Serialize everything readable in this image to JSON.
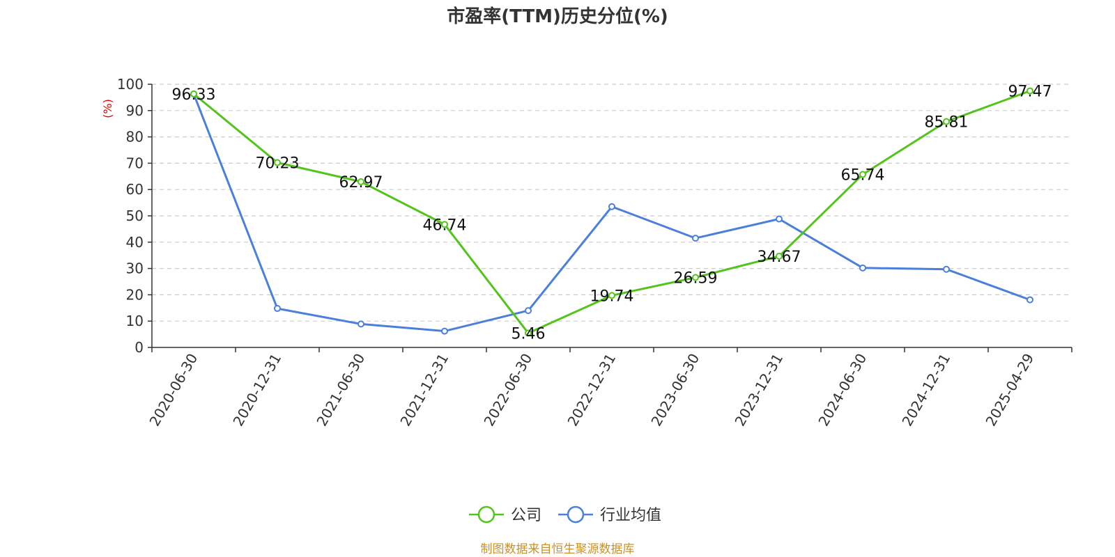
{
  "chart_data": {
    "type": "line",
    "title": "市盈率(TTM)历史分位(%)",
    "ylabel": "(%)",
    "ylim": [
      0,
      100
    ],
    "yticks": [
      0,
      10,
      20,
      30,
      40,
      50,
      60,
      70,
      80,
      90,
      100
    ],
    "grid": true,
    "legend_position": "bottom-center",
    "categories": [
      "2020-06-30",
      "2020-12-31",
      "2021-06-30",
      "2021-12-31",
      "2022-06-30",
      "2022-12-31",
      "2023-06-30",
      "2023-12-31",
      "2024-06-30",
      "2024-12-31",
      "2025-04-29"
    ],
    "series": [
      {
        "name": "公司",
        "color": "#52c41a",
        "show_labels": true,
        "values": [
          96.33,
          70.23,
          62.97,
          46.74,
          5.46,
          19.74,
          26.59,
          34.67,
          65.74,
          85.81,
          97.47
        ],
        "labels": [
          "96.33",
          "70.23",
          "62.97",
          "46.74",
          "5.46",
          "19.74",
          "26.59",
          "34.67",
          "65.74",
          "85.81",
          "97.47"
        ]
      },
      {
        "name": "行业均值",
        "color": "#4a7fdc",
        "show_labels": false,
        "values": [
          96.3,
          14.8,
          8.9,
          6.2,
          14.0,
          53.5,
          41.5,
          48.8,
          30.2,
          29.7,
          18.1
        ]
      }
    ],
    "source": "制图数据来自恒生聚源数据库",
    "source_color": "#c8922a",
    "ylabel_color": "#e60000"
  }
}
